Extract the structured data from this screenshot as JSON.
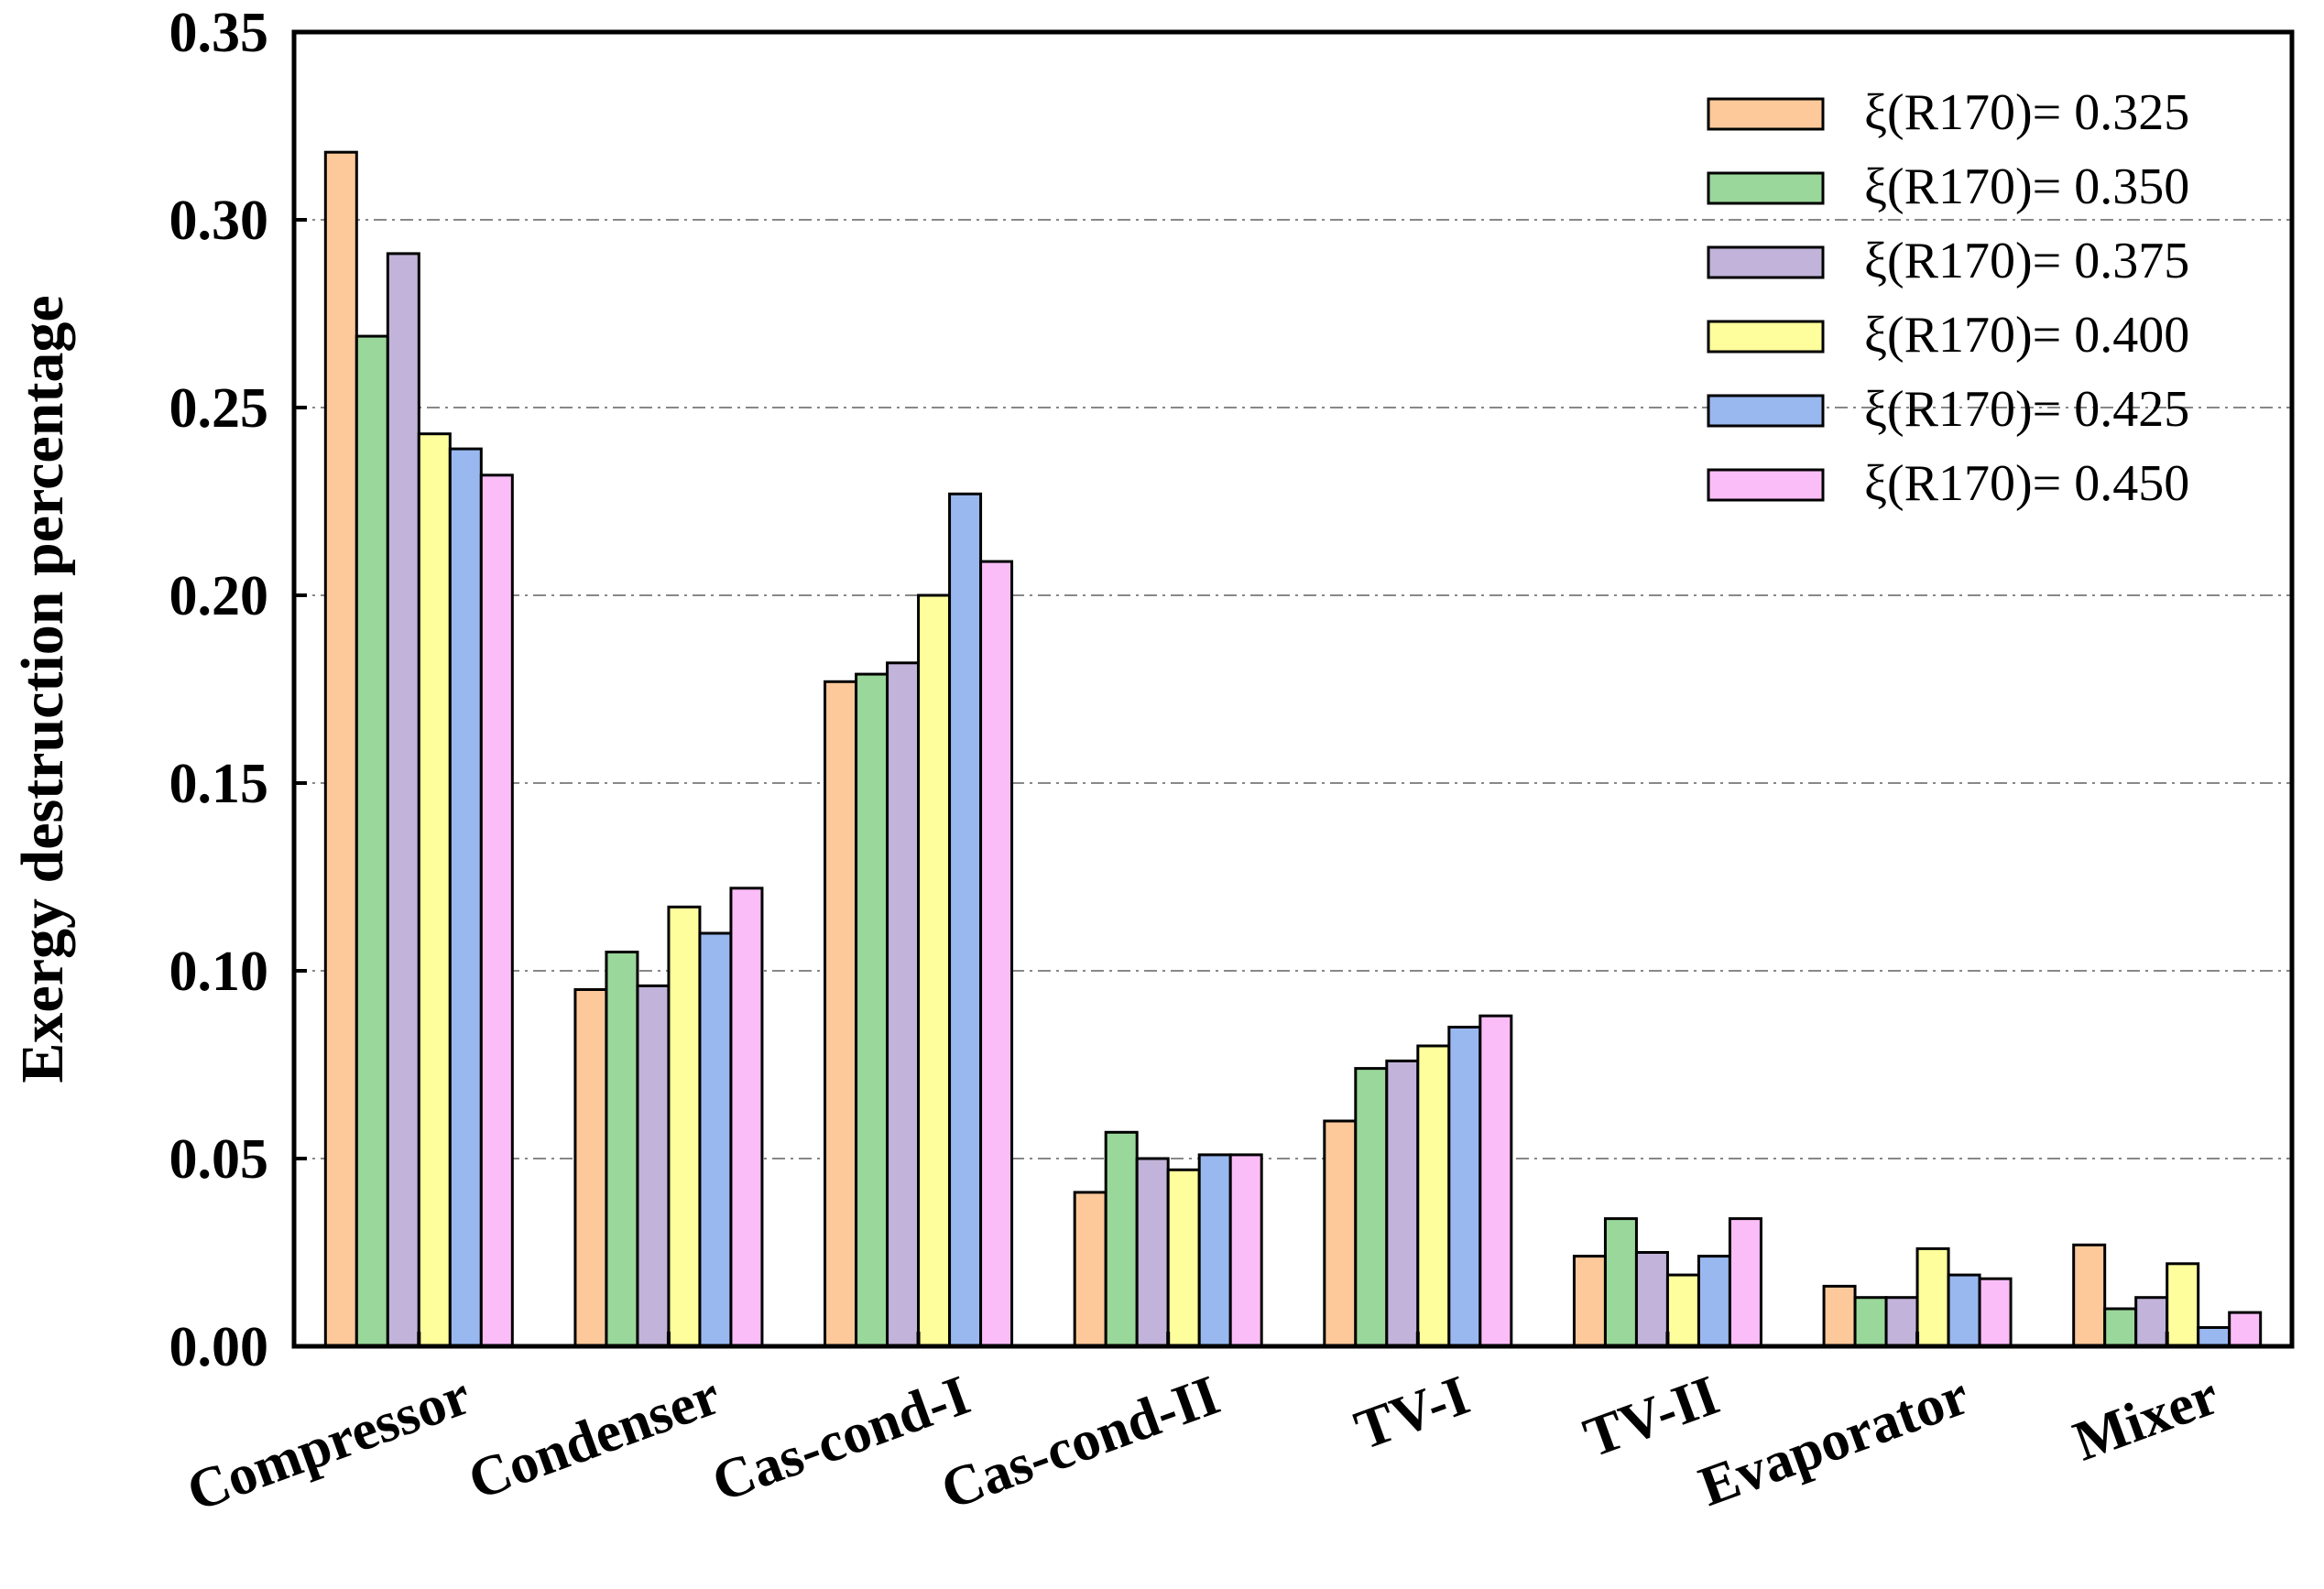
{
  "chart_data": {
    "type": "bar",
    "title": "",
    "xlabel": "",
    "ylabel": "Exergy destruction percentage",
    "ylim": [
      0,
      0.35
    ],
    "yticks": [
      "0.00",
      "0.05",
      "0.10",
      "0.15",
      "0.20",
      "0.25",
      "0.30",
      "0.35"
    ],
    "grid": true,
    "legend_position": "top-right",
    "categories": [
      "Compressor",
      "Condenser",
      "Cas-cond-I",
      "Cas-cond-II",
      "TV-I",
      "TV-II",
      "Evaporator",
      "Mixer"
    ],
    "series": [
      {
        "name": "ξ(R170)= 0.325",
        "color": "#fdc99a",
        "values": [
          0.318,
          0.095,
          0.177,
          0.041,
          0.06,
          0.024,
          0.016,
          0.027
        ]
      },
      {
        "name": "ξ(R170)= 0.350",
        "color": "#9ad79a",
        "values": [
          0.269,
          0.105,
          0.179,
          0.057,
          0.074,
          0.034,
          0.013,
          0.01
        ]
      },
      {
        "name": "ξ(R170)= 0.375",
        "color": "#c1b3d9",
        "values": [
          0.291,
          0.096,
          0.182,
          0.05,
          0.076,
          0.025,
          0.013,
          0.013
        ]
      },
      {
        "name": "ξ(R170)= 0.400",
        "color": "#fefe9c",
        "values": [
          0.243,
          0.117,
          0.2,
          0.047,
          0.08,
          0.019,
          0.026,
          0.022
        ]
      },
      {
        "name": "ξ(R170)= 0.425",
        "color": "#99b8f0",
        "values": [
          0.239,
          0.11,
          0.227,
          0.051,
          0.085,
          0.024,
          0.019,
          0.005
        ]
      },
      {
        "name": "ξ(R170)= 0.450",
        "color": "#fbbdf8",
        "values": [
          0.232,
          0.122,
          0.209,
          0.051,
          0.088,
          0.034,
          0.018,
          0.009
        ]
      }
    ]
  }
}
